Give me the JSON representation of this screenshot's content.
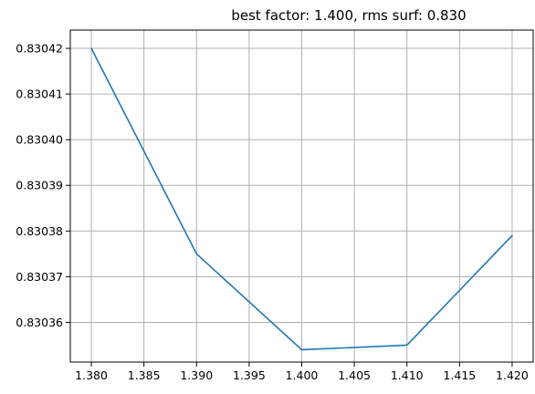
{
  "chart_data": {
    "type": "line",
    "title": "best factor: 1.400, rms surf: 0.830",
    "xlabel": "",
    "ylabel": "",
    "grid": true,
    "x": [
      1.38,
      1.39,
      1.4,
      1.41,
      1.42
    ],
    "series": [
      {
        "color": "#1f77b4",
        "values": [
          0.83042,
          0.830375,
          0.830354,
          0.830355,
          0.830379
        ]
      }
    ],
    "xlim": [
      1.378,
      1.422
    ],
    "ylim": [
      0.8303513,
      0.830424
    ],
    "xticks": [
      1.38,
      1.385,
      1.39,
      1.395,
      1.4,
      1.405,
      1.41,
      1.415,
      1.42
    ],
    "xtick_labels": [
      "1.380",
      "1.385",
      "1.390",
      "1.395",
      "1.400",
      "1.405",
      "1.410",
      "1.415",
      "1.420"
    ],
    "yticks": [
      0.83036,
      0.83037,
      0.83038,
      0.83039,
      0.8304,
      0.83041,
      0.83042
    ],
    "ytick_labels": [
      "0.83036",
      "0.83037",
      "0.83038",
      "0.83039",
      "0.83040",
      "0.83041",
      "0.83042"
    ]
  }
}
